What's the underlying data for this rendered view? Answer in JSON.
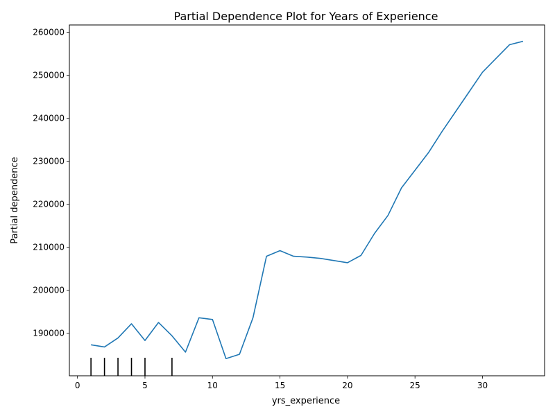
{
  "chart_data": {
    "type": "line",
    "title": "Partial Dependence Plot for Years of Experience",
    "xlabel": "yrs_experience",
    "ylabel": "Partial dependence",
    "xlim": [
      -0.6,
      34.6
    ],
    "ylim": [
      180100,
      261700
    ],
    "xticks": [
      0,
      5,
      10,
      15,
      20,
      25,
      30
    ],
    "yticks": [
      190000,
      200000,
      210000,
      220000,
      230000,
      240000,
      250000,
      260000
    ],
    "grid": false,
    "series": [
      {
        "color": "#1f77b4",
        "x": [
          1,
          2,
          3,
          4,
          5,
          6,
          7,
          8,
          9,
          10,
          11,
          12,
          13,
          14,
          15,
          16,
          17,
          18,
          19,
          20,
          21,
          22,
          23,
          24,
          25,
          26,
          27,
          28,
          29,
          30,
          31,
          32,
          33
        ],
        "y": [
          187300,
          186800,
          188900,
          192200,
          188300,
          192500,
          189400,
          185600,
          193600,
          193200,
          184100,
          185100,
          193600,
          207900,
          209200,
          207900,
          207700,
          207400,
          206900,
          206400,
          208100,
          213200,
          217400,
          223800,
          227900,
          232000,
          236900,
          241500,
          246100,
          250700,
          253900,
          257100,
          257900
        ]
      }
    ],
    "rug": {
      "color": "#000000",
      "x": [
        1,
        2,
        3,
        4,
        5,
        7
      ]
    }
  }
}
